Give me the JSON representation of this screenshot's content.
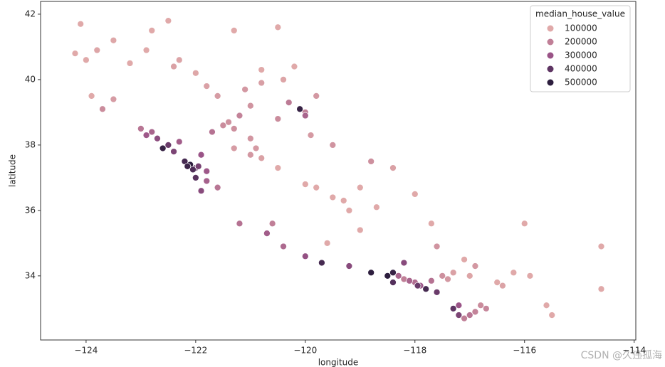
{
  "chart_data": {
    "type": "scatter",
    "xlabel": "longitude",
    "ylabel": "latitude",
    "xlim": [
      -124.83,
      -113.97
    ],
    "ylim": [
      32.04,
      42.39
    ],
    "xticks": [
      {
        "value": -124,
        "label": "−124"
      },
      {
        "value": -122,
        "label": "−122"
      },
      {
        "value": -120,
        "label": "−120"
      },
      {
        "value": -118,
        "label": "−118"
      },
      {
        "value": -116,
        "label": "−116"
      },
      {
        "value": -114,
        "label": "−114"
      }
    ],
    "yticks": [
      34,
      36,
      38,
      40,
      42
    ],
    "legend": {
      "title": "median_house_value",
      "position": "upper right",
      "values": [
        100000,
        200000,
        300000,
        400000,
        500000
      ],
      "colors": [
        "#e0a9a9",
        "#c07f97",
        "#9a5487",
        "#5e3563",
        "#2d1e3e"
      ]
    },
    "x": [
      -124.2,
      -124.1,
      -123.8,
      -123.5,
      -123.2,
      -122.8,
      -122.5,
      -122.3,
      -122.4,
      -122.0,
      -121.8,
      -121.6,
      -121.3,
      -120.5,
      -120.8,
      -121.0,
      -120.2,
      -119.8,
      -121.5,
      -121.4,
      -121.3,
      -121.7,
      -121.2,
      -121.0,
      -120.9,
      -122.4,
      -122.2,
      -122.1,
      -122.0,
      -122.6,
      -122.5,
      -122.3,
      -121.9,
      -122.8,
      -122.7,
      -122.0,
      -121.8,
      -121.9,
      -121.8,
      -121.6,
      -120.5,
      -120.0,
      -119.8,
      -119.5,
      -119.3,
      -119.0,
      -119.2,
      -120.8,
      -121.3,
      -121.0,
      -120.5,
      -120.0,
      -119.5,
      -118.8,
      -118.4,
      -118.0,
      -120.7,
      -120.4,
      -119.7,
      -119.2,
      -118.8,
      -118.5,
      -118.4,
      -118.3,
      -118.2,
      -118.0,
      -117.9,
      -117.8,
      -117.6,
      -118.4,
      -117.3,
      -117.0,
      -116.5,
      -117.4,
      -117.1,
      -116.2,
      -115.5,
      -115.6,
      -114.6,
      -114.6,
      -116.0,
      -117.7,
      -117.2,
      -117.1,
      -117.0,
      -116.9,
      -117.3,
      -117.2,
      -116.7,
      -120.3,
      -120.0,
      -120.1,
      -123.0,
      -122.9,
      -123.5,
      -123.7,
      -121.2,
      -120.6,
      -119.6,
      -120.0,
      -124.0,
      -123.9,
      -122.9,
      -121.1,
      -120.8,
      -120.4,
      -119.9,
      -119.0,
      -118.7,
      -118.2,
      -117.6,
      -116.9,
      -116.4,
      -115.9,
      -117.5,
      -116.8,
      -118.1,
      -117.95,
      -117.7,
      -122.15,
      -122.05,
      -121.95
    ],
    "y": [
      40.8,
      41.7,
      40.9,
      41.2,
      40.5,
      41.5,
      41.8,
      40.6,
      40.4,
      40.2,
      39.8,
      39.5,
      41.5,
      41.6,
      40.3,
      39.2,
      40.4,
      39.5,
      38.6,
      38.7,
      38.5,
      38.4,
      38.9,
      38.2,
      37.9,
      37.8,
      37.5,
      37.4,
      37.3,
      37.9,
      38.0,
      38.1,
      37.7,
      38.4,
      38.2,
      37.0,
      37.2,
      36.6,
      36.9,
      36.7,
      37.3,
      36.8,
      36.7,
      36.4,
      36.3,
      35.4,
      36.0,
      37.6,
      37.9,
      37.7,
      38.8,
      39.0,
      38.0,
      37.5,
      37.3,
      36.5,
      35.3,
      34.9,
      34.4,
      34.3,
      34.1,
      34.0,
      34.1,
      34.0,
      33.9,
      33.8,
      33.7,
      33.6,
      33.5,
      33.8,
      34.1,
      34.0,
      33.8,
      33.9,
      34.5,
      34.1,
      32.8,
      33.1,
      33.6,
      34.9,
      35.6,
      35.6,
      32.8,
      32.7,
      32.8,
      32.9,
      33.0,
      33.1,
      33.0,
      39.3,
      38.9,
      39.1,
      38.5,
      38.3,
      39.4,
      39.1,
      35.6,
      35.6,
      35.0,
      34.6,
      40.6,
      39.5,
      40.9,
      39.7,
      39.9,
      40.0,
      38.3,
      36.7,
      36.1,
      34.4,
      34.9,
      34.3,
      33.7,
      34.0,
      34.0,
      33.1,
      33.85,
      33.7,
      33.85,
      37.35,
      37.25,
      37.35
    ],
    "values": [
      95000,
      88000,
      110000,
      105000,
      98000,
      85000,
      90000,
      112000,
      120000,
      105000,
      118000,
      130000,
      75000,
      70000,
      95000,
      150000,
      92000,
      140000,
      170000,
      155000,
      160000,
      230000,
      190000,
      145000,
      135000,
      350000,
      450000,
      500000,
      400000,
      480000,
      380000,
      280000,
      300000,
      260000,
      320000,
      410000,
      290000,
      330000,
      270000,
      220000,
      100000,
      90000,
      85000,
      80000,
      75000,
      85000,
      90000,
      120000,
      130000,
      140000,
      170000,
      200000,
      150000,
      160000,
      120000,
      100000,
      280000,
      250000,
      450000,
      330000,
      500000,
      500000,
      480000,
      260000,
      200000,
      240000,
      300000,
      450000,
      380000,
      420000,
      120000,
      110000,
      100000,
      140000,
      90000,
      70000,
      70000,
      60000,
      50000,
      70000,
      60000,
      80000,
      350000,
      200000,
      220000,
      190000,
      400000,
      300000,
      180000,
      210000,
      260000,
      480000,
      220000,
      290000,
      130000,
      170000,
      230000,
      200000,
      90000,
      310000,
      85000,
      100000,
      95000,
      140000,
      125000,
      110000,
      135000,
      78000,
      92000,
      330000,
      150000,
      140000,
      115000,
      90000,
      160000,
      170000,
      260000,
      380000,
      230000,
      470000,
      430000,
      360000
    ]
  },
  "watermark": "CSDN @久违孤海"
}
